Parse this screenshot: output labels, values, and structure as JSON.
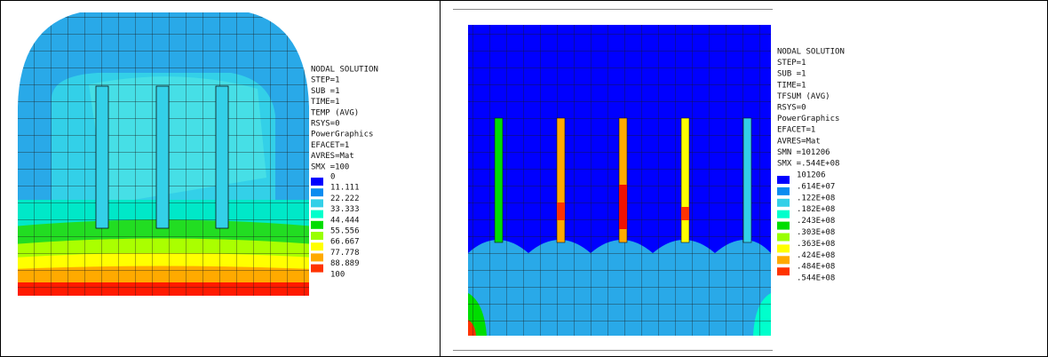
{
  "panels": [
    {
      "info": [
        "NODAL SOLUTION",
        "STEP=1",
        "SUB =1",
        "TIME=1",
        "TEMP     (AVG)",
        "RSYS=0",
        "PowerGraphics",
        "EFACET=1",
        "AVRES=Mat",
        "SMX =100"
      ],
      "legend": [
        {
          "label": "0",
          "color": "#0000ff"
        },
        {
          "label": "11.111",
          "color": "#0a8cf0"
        },
        {
          "label": "22.222",
          "color": "#33d0e8"
        },
        {
          "label": "33.333",
          "color": "#00ffcc"
        },
        {
          "label": "44.444",
          "color": "#00dd00"
        },
        {
          "label": "55.556",
          "color": "#99ff00"
        },
        {
          "label": "66.667",
          "color": "#ffff00"
        },
        {
          "label": "77.778",
          "color": "#ffaa00"
        },
        {
          "label": "88.889",
          "color": "#ff3300"
        },
        {
          "label": "100"
        }
      ]
    },
    {
      "info": [
        "NODAL SOLUTION",
        "STEP=1",
        "SUB =1",
        "TIME=1",
        "TFSUM    (AVG)",
        "RSYS=0",
        "PowerGraphics",
        "EFACET=1",
        "AVRES=Mat",
        "SMN =101206",
        "SMX =.544E+08"
      ],
      "legend": [
        {
          "label": "101206",
          "color": "#0000ff"
        },
        {
          "label": ".614E+07",
          "color": "#0a8cf0"
        },
        {
          "label": ".122E+08",
          "color": "#33d0e8"
        },
        {
          "label": ".182E+08",
          "color": "#00ffcc"
        },
        {
          "label": ".243E+08",
          "color": "#00dd00"
        },
        {
          "label": ".303E+08",
          "color": "#99ff00"
        },
        {
          "label": ".363E+08",
          "color": "#ffff00"
        },
        {
          "label": ".424E+08",
          "color": "#ffaa00"
        },
        {
          "label": ".484E+08",
          "color": "#ff3300"
        },
        {
          "label": ".544E+08"
        }
      ]
    }
  ]
}
